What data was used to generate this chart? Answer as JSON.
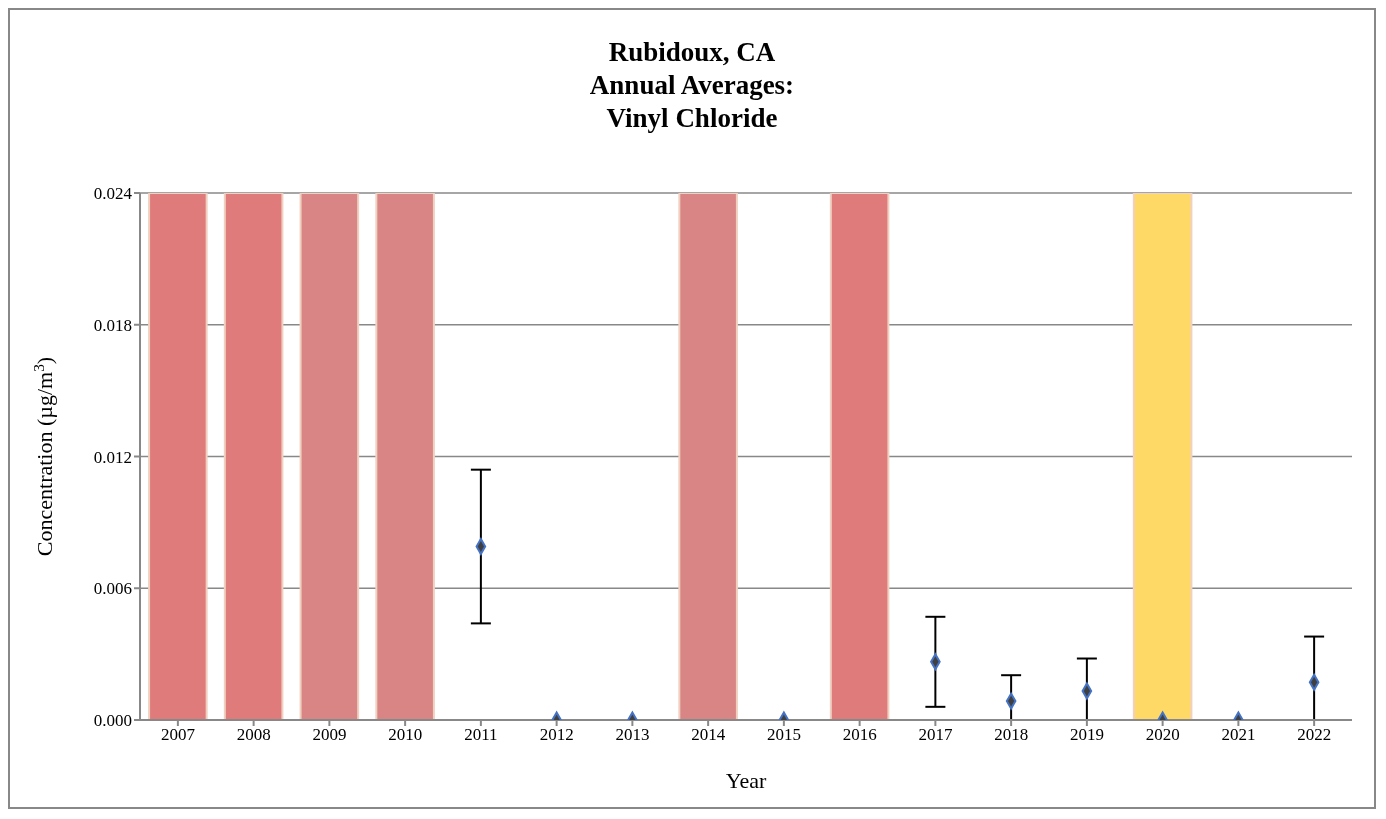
{
  "chart_data": {
    "type": "scatter",
    "title": "Rubidoux, CA\nAnnual Averages:\nVinyl Chloride",
    "xlabel": "Year",
    "ylabel": "Concentration (µg/m$^{3}$)",
    "categories": [
      "2007",
      "2008",
      "2009",
      "2010",
      "2011",
      "2012",
      "2013",
      "2014",
      "2015",
      "2016",
      "2017",
      "2018",
      "2019",
      "2020",
      "2021",
      "2022"
    ],
    "series": [
      {
        "color": "#404040",
        "values": [
          null,
          null,
          null,
          null,
          0.0079,
          0,
          0,
          null,
          0,
          null,
          0.00265,
          0.00086,
          0.00132,
          0,
          0,
          0.00172
        ],
        "errors": [
          null,
          null,
          null,
          null,
          [
            0.0044,
            0.0114
          ],
          null,
          null,
          null,
          null,
          null,
          [
            0.0006,
            0.0047
          ],
          [
            0,
            0.00204
          ],
          [
            0,
            0.0028
          ],
          null,
          null,
          [
            0,
            0.0038
          ]
        ]
      }
    ],
    "ylim": [
      0,
      0.024
    ],
    "yticks": [
      {
        "value": 0,
        "label": "0.000"
      },
      {
        "value": 0.006,
        "label": "0.006"
      },
      {
        "value": 0.012,
        "label": "0.012"
      },
      {
        "value": 0.018,
        "label": "0.018"
      },
      {
        "value": 0.024,
        "label": "0.024"
      }
    ],
    "grid": "y",
    "marker": "diamond",
    "bands": [
      {
        "axis": "x",
        "from": "2007",
        "to": "2007",
        "color": "#e07b7b"
      },
      {
        "axis": "x",
        "from": "2008",
        "to": "2008",
        "color": "#e07b7b"
      },
      {
        "axis": "x",
        "from": "2009",
        "to": "2009",
        "color": "#d98585"
      },
      {
        "axis": "x",
        "from": "2010",
        "to": "2010",
        "color": "#d98585"
      },
      {
        "axis": "x",
        "from": "2014",
        "to": "2014",
        "color": "#d98585"
      },
      {
        "axis": "x",
        "from": "2016",
        "to": "2016",
        "color": "#e07b7b"
      },
      {
        "axis": "x",
        "from": "2020",
        "to": "2020",
        "color": "#ffd966"
      }
    ]
  }
}
